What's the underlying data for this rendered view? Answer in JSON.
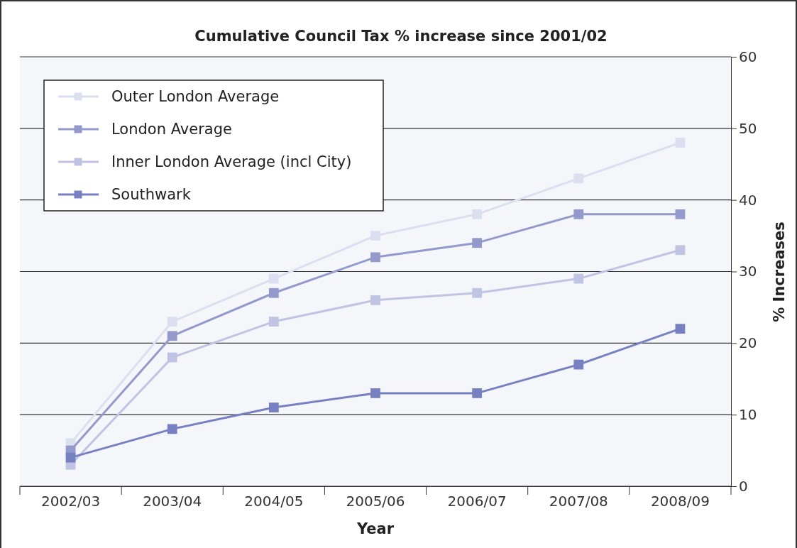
{
  "chart_data": {
    "type": "line",
    "title": "Cumulative Council Tax % increase since 2001/02",
    "xlabel": "Year",
    "ylabel": "% Increases",
    "categories": [
      "2002/03",
      "2003/04",
      "2004/05",
      "2005/06",
      "2006/07",
      "2007/08",
      "2008/09"
    ],
    "series": [
      {
        "name": "Outer London Average",
        "color": "#dcdff0",
        "values": [
          6,
          23,
          29,
          35,
          38,
          43,
          48
        ]
      },
      {
        "name": "London Average",
        "color": "#9499cc",
        "values": [
          5,
          21,
          27,
          32,
          34,
          38,
          38
        ]
      },
      {
        "name": "Inner London Average (incl City)",
        "color": "#c0c3e2",
        "values": [
          3,
          18,
          23,
          26,
          27,
          29,
          33
        ]
      },
      {
        "name": "Southwark",
        "color": "#7780c0",
        "values": [
          4,
          8,
          11,
          13,
          13,
          17,
          22
        ]
      }
    ],
    "ylim": [
      0,
      60
    ],
    "yticks": [
      0,
      10,
      20,
      30,
      40,
      50,
      60
    ],
    "grid": "y",
    "legend": "top left",
    "marker": "square",
    "line_style": "solid"
  }
}
